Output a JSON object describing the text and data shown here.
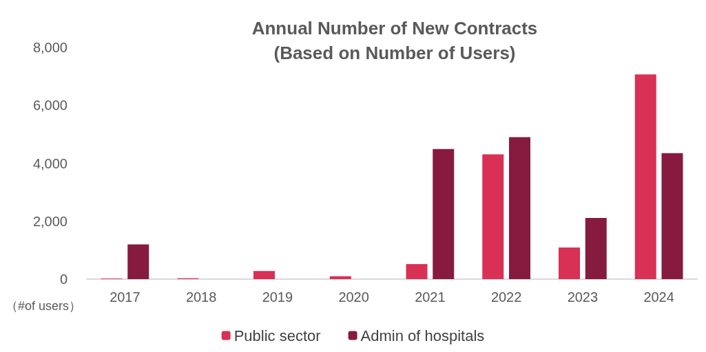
{
  "chart_data": {
    "type": "bar",
    "title": "Annual Number of New Contracts\n(Based on Number of Users)",
    "ylabel": "（#of users）",
    "categories": [
      "2017",
      "2018",
      "2019",
      "2020",
      "2021",
      "2022",
      "2023",
      "2024"
    ],
    "series": [
      {
        "name": "Public sector",
        "color": "#d93055",
        "values": [
          20,
          30,
          280,
          100,
          520,
          4310,
          1090,
          7070
        ]
      },
      {
        "name": "Admin of hospitals",
        "color": "#861b3f",
        "values": [
          1200,
          0,
          0,
          0,
          4490,
          4900,
          2110,
          4350
        ]
      }
    ],
    "ylim": [
      0,
      8000
    ],
    "yticks": [
      0,
      {
        "value": 2000,
        "label": "2,000"
      },
      {
        "value": 4000,
        "label": "4,000"
      },
      {
        "value": 6000,
        "label": "6,000"
      },
      {
        "value": 8000,
        "label": "8,000"
      }
    ],
    "grid": false,
    "legend": "bottom"
  }
}
